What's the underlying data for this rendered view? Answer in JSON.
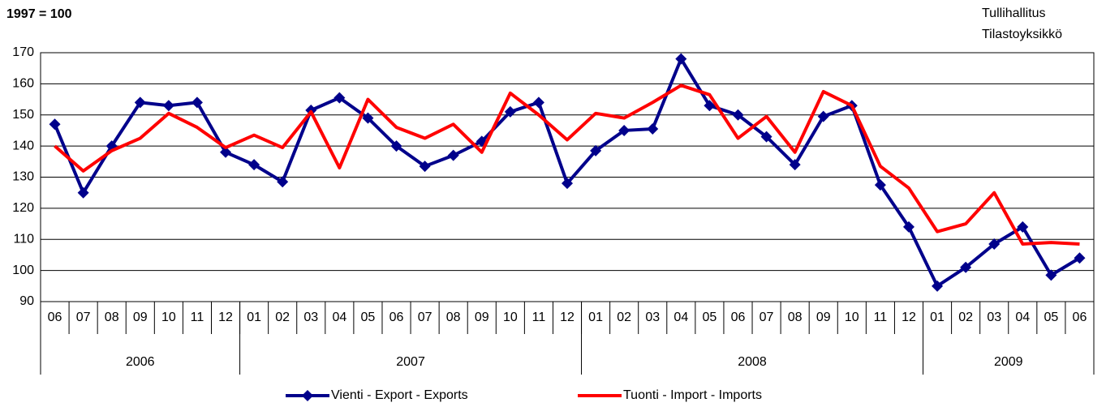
{
  "chart_data": {
    "type": "line",
    "subtitle": "1997 = 100",
    "source": [
      "Tullihallitus",
      "Tilastoyksikkö"
    ],
    "category_groups": [
      {
        "name": "2006",
        "categories": [
          "06",
          "07",
          "08",
          "09",
          "10",
          "11",
          "12"
        ]
      },
      {
        "name": "2007",
        "categories": [
          "01",
          "02",
          "03",
          "04",
          "05",
          "06",
          "07",
          "08",
          "09",
          "10",
          "11",
          "12"
        ]
      },
      {
        "name": "2008",
        "categories": [
          "01",
          "02",
          "03",
          "04",
          "05",
          "06",
          "07",
          "08",
          "09",
          "10",
          "11",
          "12"
        ]
      },
      {
        "name": "2009",
        "categories": [
          "01",
          "02",
          "03",
          "04",
          "05",
          "06"
        ]
      }
    ],
    "series": [
      {
        "name": "Vienti - Export - Exports",
        "color": "#00008b",
        "marker": "diamond",
        "values": [
          147,
          125,
          140,
          154,
          153,
          154,
          138,
          134,
          128.5,
          151.5,
          155.5,
          149,
          140,
          133.5,
          137,
          141.5,
          151,
          154,
          128,
          138.5,
          145,
          145.5,
          168,
          153,
          150,
          143,
          134,
          149.5,
          153,
          127.5,
          114,
          95,
          101,
          108.5,
          114,
          98.5,
          104
        ]
      },
      {
        "name": "Tuonti - Import - Imports",
        "color": "#ff0000",
        "marker": "none",
        "values": [
          140,
          132,
          138.5,
          142.5,
          150.5,
          146,
          139.5,
          143.5,
          139.5,
          151,
          133,
          155,
          146,
          142.5,
          147,
          138,
          157,
          150,
          142,
          150.5,
          149,
          154,
          159.5,
          156.5,
          142.5,
          149.5,
          138,
          157.5,
          153,
          133.5,
          126.5,
          112.5,
          115,
          125,
          108.5,
          109,
          108.5
        ]
      }
    ],
    "ylim": [
      90,
      170
    ],
    "yticks": [
      90,
      100,
      110,
      120,
      130,
      140,
      150,
      160,
      170
    ],
    "grid": true,
    "legend": "bottom"
  }
}
